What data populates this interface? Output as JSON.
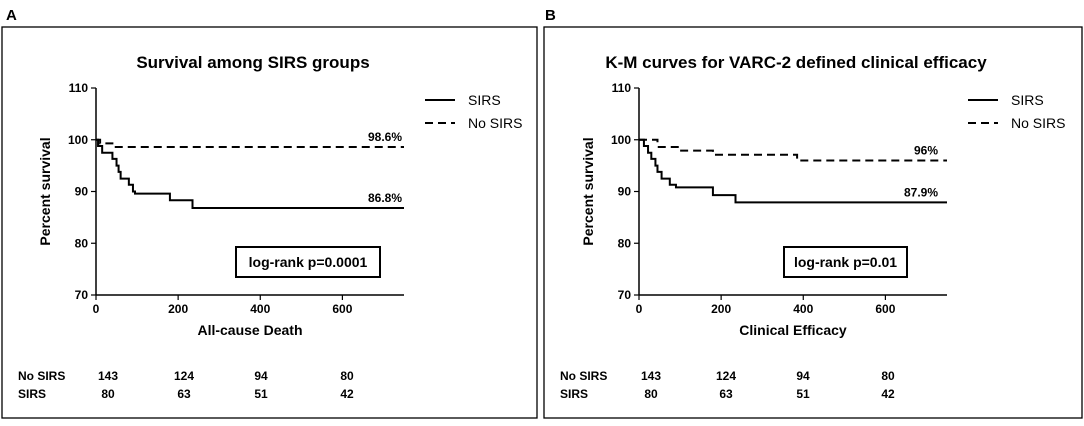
{
  "chart_data": [
    {
      "type": "line",
      "panel": "A",
      "title": "Survival among SIRS groups",
      "xlabel": "All-cause Death",
      "ylabel": "Percent survival",
      "xlim": [
        0,
        750
      ],
      "ylim": [
        70,
        110
      ],
      "xticks": [
        0,
        200,
        400,
        600
      ],
      "yticks": [
        70,
        80,
        90,
        100,
        110
      ],
      "legend_position": "top-right",
      "series": [
        {
          "name": "SIRS",
          "style": "solid",
          "end_label": "86.8%",
          "points": [
            [
              0,
              100
            ],
            [
              5,
              98.8
            ],
            [
              15,
              97.5
            ],
            [
              40,
              96.3
            ],
            [
              50,
              95
            ],
            [
              55,
              93.8
            ],
            [
              60,
              92.5
            ],
            [
              80,
              91.3
            ],
            [
              90,
              90
            ],
            [
              95,
              89.6
            ],
            [
              180,
              89.6
            ],
            [
              180,
              88.3
            ],
            [
              235,
              88.3
            ],
            [
              235,
              86.8
            ],
            [
              750,
              86.8
            ]
          ]
        },
        {
          "name": "No SIRS",
          "style": "dashed",
          "end_label": "98.6%",
          "points": [
            [
              0,
              100
            ],
            [
              10,
              99.3
            ],
            [
              45,
              99.3
            ],
            [
              45,
              98.6
            ],
            [
              750,
              98.6
            ]
          ]
        }
      ],
      "annotation": "log-rank p=0.0001",
      "risk_table": {
        "times": [
          0,
          200,
          400,
          600
        ],
        "rows": [
          {
            "label": "No SIRS",
            "values": [
              "143",
              "124",
              "94",
              "80"
            ]
          },
          {
            "label": "SIRS",
            "values": [
              "80",
              "63",
              "51",
              "42"
            ]
          }
        ]
      }
    },
    {
      "type": "line",
      "panel": "B",
      "title": "K-M curves for VARC-2 defined clinical efficacy",
      "xlabel": "Clinical Efficacy",
      "ylabel": "Percent survival",
      "xlim": [
        0,
        750
      ],
      "ylim": [
        70,
        110
      ],
      "xticks": [
        0,
        200,
        400,
        600
      ],
      "yticks": [
        70,
        80,
        90,
        100,
        110
      ],
      "legend_position": "top-right",
      "series": [
        {
          "name": "SIRS",
          "style": "solid",
          "end_label": "87.9%",
          "points": [
            [
              0,
              100
            ],
            [
              12,
              98.8
            ],
            [
              22,
              97.5
            ],
            [
              30,
              96.3
            ],
            [
              40,
              95
            ],
            [
              45,
              93.8
            ],
            [
              55,
              92.5
            ],
            [
              75,
              91.3
            ],
            [
              90,
              90.8
            ],
            [
              180,
              90.8
            ],
            [
              180,
              89.3
            ],
            [
              235,
              89.3
            ],
            [
              235,
              87.9
            ],
            [
              750,
              87.9
            ]
          ]
        },
        {
          "name": "No SIRS",
          "style": "dashed",
          "end_label": "96%",
          "points": [
            [
              0,
              100
            ],
            [
              45,
              100
            ],
            [
              45,
              98.6
            ],
            [
              100,
              98.6
            ],
            [
              100,
              97.9
            ],
            [
              180,
              97.9
            ],
            [
              180,
              97.1
            ],
            [
              385,
              97.1
            ],
            [
              385,
              96
            ],
            [
              750,
              96
            ]
          ]
        }
      ],
      "annotation": "log-rank p=0.01",
      "risk_table": {
        "times": [
          0,
          200,
          400,
          600
        ],
        "rows": [
          {
            "label": "No SIRS",
            "values": [
              "143",
              "124",
              "94",
              "80"
            ]
          },
          {
            "label": "SIRS",
            "values": [
              "80",
              "63",
              "51",
              "42"
            ]
          }
        ]
      }
    }
  ]
}
